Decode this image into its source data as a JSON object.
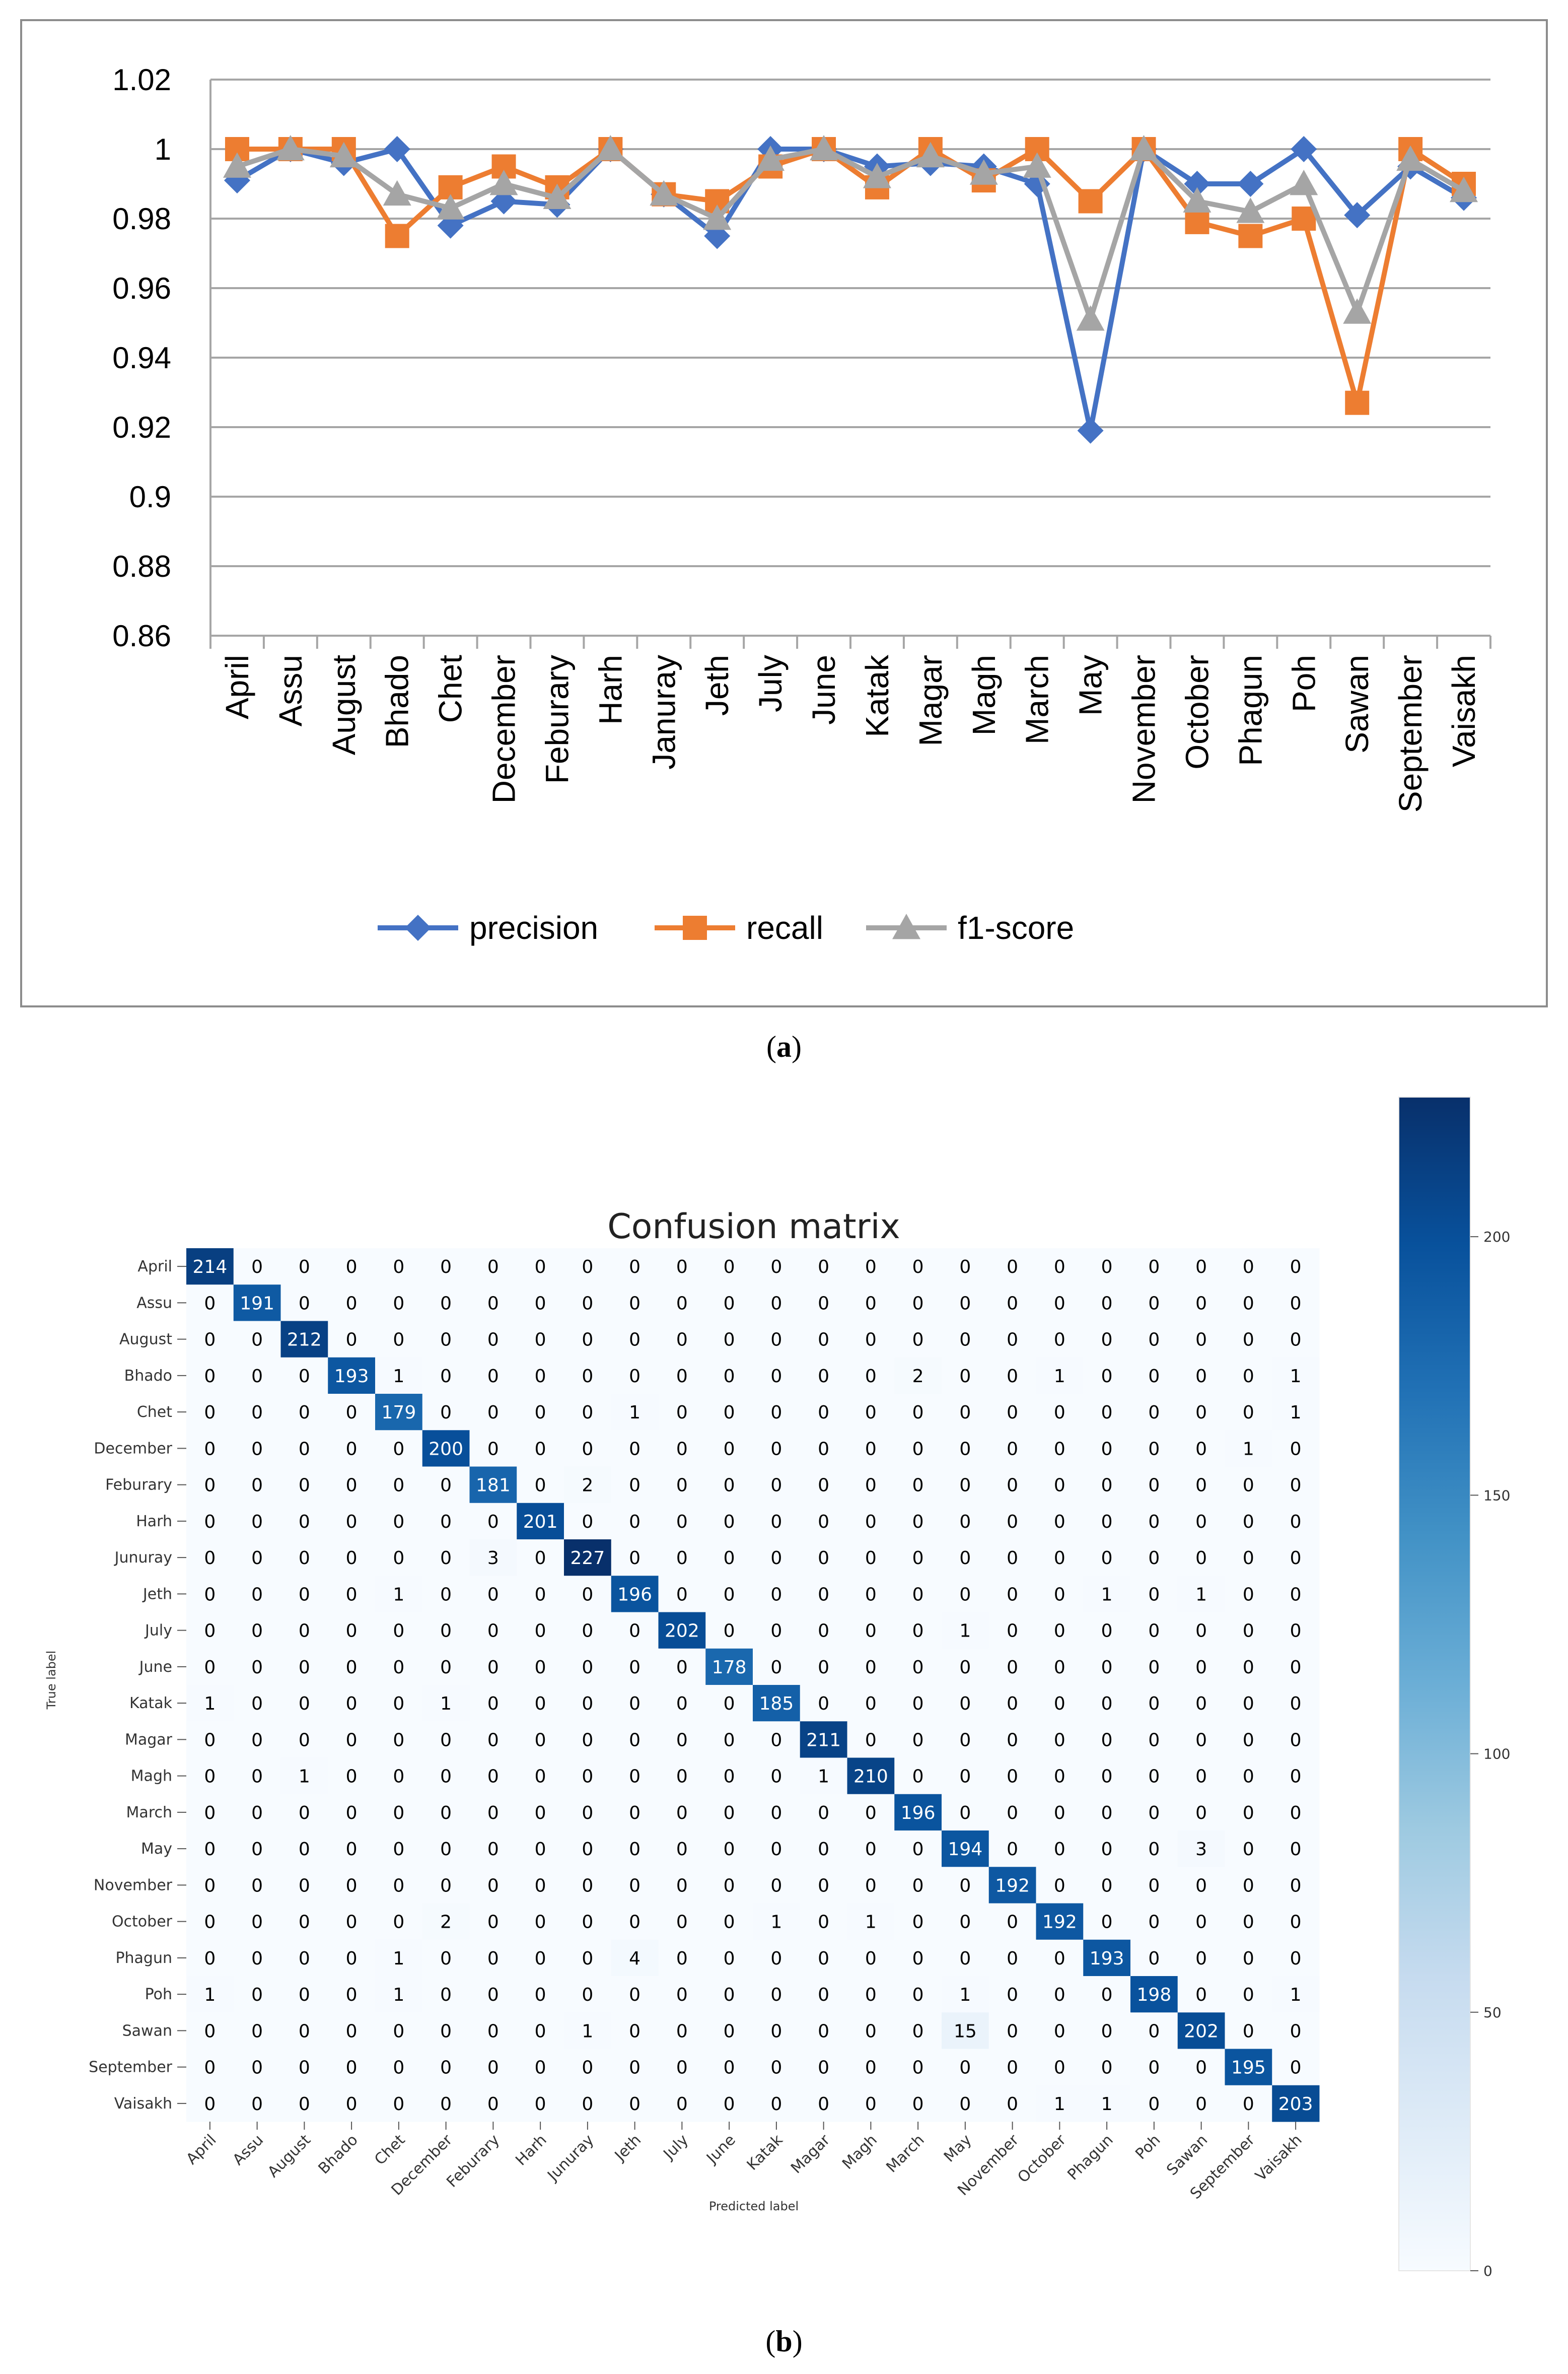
{
  "captions": {
    "a": "a",
    "b": "b"
  },
  "chart_data": [
    {
      "type": "line",
      "categories": [
        "April",
        "Assu",
        "August",
        "Bhado",
        "Chet",
        "December",
        "Feburary",
        "Harh",
        "Januray",
        "Jeth",
        "July",
        "June",
        "Katak",
        "Magar",
        "Magh",
        "March",
        "May",
        "November",
        "October",
        "Phagun",
        "Poh",
        "Sawan",
        "September",
        "Vaisakh"
      ],
      "series": [
        {
          "name": "precision",
          "color": "#4472C4",
          "marker": "diamond",
          "values": [
            0.991,
            1.0,
            0.996,
            1.0,
            0.978,
            0.985,
            0.984,
            1.0,
            0.987,
            0.975,
            1.0,
            1.0,
            0.995,
            0.996,
            0.995,
            0.99,
            0.919,
            1.0,
            0.99,
            0.99,
            1.0,
            0.981,
            0.995,
            0.986
          ]
        },
        {
          "name": "recall",
          "color": "#ED7D31",
          "marker": "square",
          "values": [
            1.0,
            1.0,
            1.0,
            0.975,
            0.989,
            0.995,
            0.989,
            1.0,
            0.987,
            0.985,
            0.995,
            1.0,
            0.989,
            1.0,
            0.991,
            1.0,
            0.985,
            1.0,
            0.979,
            0.975,
            0.98,
            0.927,
            1.0,
            0.99
          ]
        },
        {
          "name": "f1-score",
          "color": "#A5A5A5",
          "marker": "triangle",
          "values": [
            0.995,
            1.0,
            0.998,
            0.987,
            0.983,
            0.99,
            0.986,
            1.0,
            0.987,
            0.98,
            0.997,
            1.0,
            0.992,
            0.998,
            0.993,
            0.995,
            0.951,
            1.0,
            0.985,
            0.982,
            0.99,
            0.953,
            0.997,
            0.988
          ]
        }
      ],
      "yticks": [
        "0.86",
        "0.88",
        "0.9",
        "0.92",
        "0.94",
        "0.96",
        "0.98",
        "1",
        "1.02"
      ],
      "ylim": [
        0.86,
        1.02
      ],
      "grid": true,
      "legend": "bottom"
    },
    {
      "type": "heatmap",
      "title": "Confusion matrix",
      "xlabel": "Predicted label",
      "ylabel": "True label",
      "row_labels": [
        "April",
        "Assu",
        "August",
        "Bhado",
        "Chet",
        "December",
        "Feburary",
        "Harh",
        "Junuray",
        "Jeth",
        "July",
        "June",
        "Katak",
        "Magar",
        "Magh",
        "March",
        "May",
        "November",
        "October",
        "Phagun",
        "Poh",
        "Sawan",
        "September",
        "Vaisakh"
      ],
      "col_labels": [
        "April",
        "Assu",
        "August",
        "Bhado",
        "Chet",
        "December",
        "Feburary",
        "Harh",
        "Junuray",
        "Jeth",
        "July",
        "June",
        "Katak",
        "Magar",
        "Magh",
        "March",
        "May",
        "November",
        "October",
        "Phagun",
        "Poh",
        "Sawan",
        "September",
        "Vaisakh"
      ],
      "matrix": [
        [
          214,
          0,
          0,
          0,
          0,
          0,
          0,
          0,
          0,
          0,
          0,
          0,
          0,
          0,
          0,
          0,
          0,
          0,
          0,
          0,
          0,
          0,
          0,
          0
        ],
        [
          0,
          191,
          0,
          0,
          0,
          0,
          0,
          0,
          0,
          0,
          0,
          0,
          0,
          0,
          0,
          0,
          0,
          0,
          0,
          0,
          0,
          0,
          0,
          0
        ],
        [
          0,
          0,
          212,
          0,
          0,
          0,
          0,
          0,
          0,
          0,
          0,
          0,
          0,
          0,
          0,
          0,
          0,
          0,
          0,
          0,
          0,
          0,
          0,
          0
        ],
        [
          0,
          0,
          0,
          193,
          1,
          0,
          0,
          0,
          0,
          0,
          0,
          0,
          0,
          0,
          0,
          2,
          0,
          0,
          1,
          0,
          0,
          0,
          0,
          1
        ],
        [
          0,
          0,
          0,
          0,
          179,
          0,
          0,
          0,
          0,
          1,
          0,
          0,
          0,
          0,
          0,
          0,
          0,
          0,
          0,
          0,
          0,
          0,
          0,
          1
        ],
        [
          0,
          0,
          0,
          0,
          0,
          200,
          0,
          0,
          0,
          0,
          0,
          0,
          0,
          0,
          0,
          0,
          0,
          0,
          0,
          0,
          0,
          0,
          1,
          0
        ],
        [
          0,
          0,
          0,
          0,
          0,
          0,
          181,
          0,
          2,
          0,
          0,
          0,
          0,
          0,
          0,
          0,
          0,
          0,
          0,
          0,
          0,
          0,
          0,
          0
        ],
        [
          0,
          0,
          0,
          0,
          0,
          0,
          0,
          201,
          0,
          0,
          0,
          0,
          0,
          0,
          0,
          0,
          0,
          0,
          0,
          0,
          0,
          0,
          0,
          0
        ],
        [
          0,
          0,
          0,
          0,
          0,
          0,
          3,
          0,
          227,
          0,
          0,
          0,
          0,
          0,
          0,
          0,
          0,
          0,
          0,
          0,
          0,
          0,
          0,
          0
        ],
        [
          0,
          0,
          0,
          0,
          1,
          0,
          0,
          0,
          0,
          196,
          0,
          0,
          0,
          0,
          0,
          0,
          0,
          0,
          0,
          1,
          0,
          1,
          0,
          0
        ],
        [
          0,
          0,
          0,
          0,
          0,
          0,
          0,
          0,
          0,
          0,
          202,
          0,
          0,
          0,
          0,
          0,
          1,
          0,
          0,
          0,
          0,
          0,
          0,
          0
        ],
        [
          0,
          0,
          0,
          0,
          0,
          0,
          0,
          0,
          0,
          0,
          0,
          178,
          0,
          0,
          0,
          0,
          0,
          0,
          0,
          0,
          0,
          0,
          0,
          0
        ],
        [
          1,
          0,
          0,
          0,
          0,
          1,
          0,
          0,
          0,
          0,
          0,
          0,
          185,
          0,
          0,
          0,
          0,
          0,
          0,
          0,
          0,
          0,
          0,
          0
        ],
        [
          0,
          0,
          0,
          0,
          0,
          0,
          0,
          0,
          0,
          0,
          0,
          0,
          0,
          211,
          0,
          0,
          0,
          0,
          0,
          0,
          0,
          0,
          0,
          0
        ],
        [
          0,
          0,
          1,
          0,
          0,
          0,
          0,
          0,
          0,
          0,
          0,
          0,
          0,
          1,
          210,
          0,
          0,
          0,
          0,
          0,
          0,
          0,
          0,
          0
        ],
        [
          0,
          0,
          0,
          0,
          0,
          0,
          0,
          0,
          0,
          0,
          0,
          0,
          0,
          0,
          0,
          196,
          0,
          0,
          0,
          0,
          0,
          0,
          0,
          0
        ],
        [
          0,
          0,
          0,
          0,
          0,
          0,
          0,
          0,
          0,
          0,
          0,
          0,
          0,
          0,
          0,
          0,
          194,
          0,
          0,
          0,
          0,
          3,
          0,
          0
        ],
        [
          0,
          0,
          0,
          0,
          0,
          0,
          0,
          0,
          0,
          0,
          0,
          0,
          0,
          0,
          0,
          0,
          0,
          192,
          0,
          0,
          0,
          0,
          0,
          0
        ],
        [
          0,
          0,
          0,
          0,
          0,
          2,
          0,
          0,
          0,
          0,
          0,
          0,
          1,
          0,
          1,
          0,
          0,
          0,
          192,
          0,
          0,
          0,
          0,
          0
        ],
        [
          0,
          0,
          0,
          0,
          1,
          0,
          0,
          0,
          0,
          4,
          0,
          0,
          0,
          0,
          0,
          0,
          0,
          0,
          0,
          193,
          0,
          0,
          0,
          0
        ],
        [
          1,
          0,
          0,
          0,
          1,
          0,
          0,
          0,
          0,
          0,
          0,
          0,
          0,
          0,
          0,
          0,
          1,
          0,
          0,
          0,
          198,
          0,
          0,
          1
        ],
        [
          0,
          0,
          0,
          0,
          0,
          0,
          0,
          0,
          1,
          0,
          0,
          0,
          0,
          0,
          0,
          0,
          15,
          0,
          0,
          0,
          0,
          202,
          0,
          0
        ],
        [
          0,
          0,
          0,
          0,
          0,
          0,
          0,
          0,
          0,
          0,
          0,
          0,
          0,
          0,
          0,
          0,
          0,
          0,
          0,
          0,
          0,
          0,
          195,
          0
        ],
        [
          0,
          0,
          0,
          0,
          0,
          0,
          0,
          0,
          0,
          0,
          0,
          0,
          0,
          0,
          0,
          0,
          0,
          0,
          1,
          1,
          0,
          0,
          0,
          203
        ]
      ],
      "colorbar": {
        "min": 0,
        "max": 227,
        "ticks": [
          0,
          50,
          100,
          150,
          200
        ],
        "tick_labels": [
          "0",
          "50",
          "100",
          "150",
          "200"
        ]
      },
      "colormap": [
        "#f7fbff",
        "#deebf7",
        "#c6dbef",
        "#9ecae1",
        "#6baed6",
        "#4292c6",
        "#2171b5",
        "#08519c",
        "#08306b"
      ]
    }
  ]
}
